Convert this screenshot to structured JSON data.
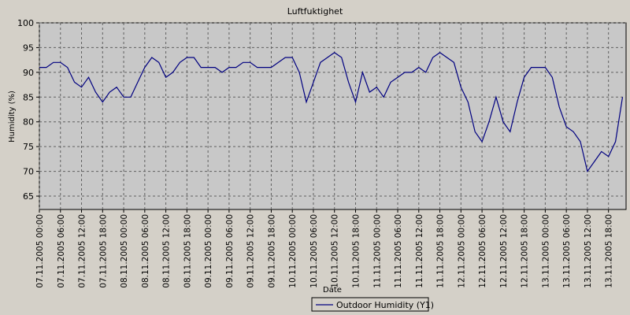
{
  "chart_data": {
    "type": "line",
    "title": "Luftfuktighet",
    "x_label": "Date",
    "y_label": "Humidity (%)",
    "x": [
      "07.11.2005 00:00",
      "07.11.2005 02:00",
      "07.11.2005 04:00",
      "07.11.2005 06:00",
      "07.11.2005 08:00",
      "07.11.2005 10:00",
      "07.11.2005 12:00",
      "07.11.2005 14:00",
      "07.11.2005 16:00",
      "07.11.2005 18:00",
      "07.11.2005 20:00",
      "07.11.2005 22:00",
      "08.11.2005 00:00",
      "08.11.2005 02:00",
      "08.11.2005 04:00",
      "08.11.2005 06:00",
      "08.11.2005 08:00",
      "08.11.2005 10:00",
      "08.11.2005 12:00",
      "08.11.2005 14:00",
      "08.11.2005 16:00",
      "08.11.2005 18:00",
      "08.11.2005 20:00",
      "08.11.2005 22:00",
      "09.11.2005 00:00",
      "09.11.2005 02:00",
      "09.11.2005 04:00",
      "09.11.2005 06:00",
      "09.11.2005 08:00",
      "09.11.2005 10:00",
      "09.11.2005 12:00",
      "09.11.2005 14:00",
      "09.11.2005 16:00",
      "09.11.2005 18:00",
      "09.11.2005 20:00",
      "09.11.2005 22:00",
      "10.11.2005 00:00",
      "10.11.2005 02:00",
      "10.11.2005 04:00",
      "10.11.2005 06:00",
      "10.11.2005 08:00",
      "10.11.2005 10:00",
      "10.11.2005 12:00",
      "10.11.2005 14:00",
      "10.11.2005 16:00",
      "10.11.2005 18:00",
      "10.11.2005 20:00",
      "10.11.2005 22:00",
      "11.11.2005 00:00",
      "11.11.2005 02:00",
      "11.11.2005 04:00",
      "11.11.2005 06:00",
      "11.11.2005 08:00",
      "11.11.2005 10:00",
      "11.11.2005 12:00",
      "11.11.2005 14:00",
      "11.11.2005 16:00",
      "11.11.2005 18:00",
      "11.11.2005 20:00",
      "11.11.2005 22:00",
      "12.11.2005 00:00",
      "12.11.2005 02:00",
      "12.11.2005 04:00",
      "12.11.2005 06:00",
      "12.11.2005 08:00",
      "12.11.2005 10:00",
      "12.11.2005 12:00",
      "12.11.2005 14:00",
      "12.11.2005 16:00",
      "12.11.2005 18:00",
      "12.11.2005 20:00",
      "12.11.2005 22:00",
      "13.11.2005 00:00",
      "13.11.2005 02:00",
      "13.11.2005 04:00",
      "13.11.2005 06:00",
      "13.11.2005 08:00",
      "13.11.2005 10:00",
      "13.11.2005 12:00",
      "13.11.2005 14:00",
      "13.11.2005 16:00",
      "13.11.2005 18:00",
      "13.11.2005 20:00",
      "13.11.2005 22:00"
    ],
    "series": [
      {
        "name": "Outdoor Humidity (Y1)",
        "color": "#000080",
        "values": [
          91,
          91,
          92,
          92,
          91,
          88,
          87,
          89,
          86,
          84,
          86,
          87,
          85,
          85,
          88,
          91,
          93,
          92,
          89,
          90,
          92,
          93,
          93,
          91,
          91,
          91,
          90,
          91,
          91,
          92,
          92,
          91,
          91,
          91,
          92,
          93,
          93,
          90,
          84,
          88,
          92,
          93,
          94,
          93,
          88,
          84,
          90,
          86,
          87,
          85,
          88,
          89,
          90,
          90,
          91,
          90,
          93,
          94,
          93,
          92,
          87,
          84,
          78,
          76,
          80,
          85,
          80,
          78,
          84,
          89,
          91,
          91,
          91,
          89,
          83,
          79,
          78,
          76,
          70,
          72,
          74,
          73,
          76,
          85
        ]
      }
    ],
    "xlim": [
      "07.11.2005 00:00",
      "13.11.2005 23:00"
    ],
    "xticks": [
      "07.11.2005 00:00",
      "07.11.2005 06:00",
      "07.11.2005 12:00",
      "07.11.2005 18:00",
      "08.11.2005 00:00",
      "08.11.2005 06:00",
      "08.11.2005 12:00",
      "08.11.2005 18:00",
      "09.11.2005 00:00",
      "09.11.2005 06:00",
      "09.11.2005 12:00",
      "09.11.2005 18:00",
      "10.11.2005 00:00",
      "10.11.2005 06:00",
      "10.11.2005 12:00",
      "10.11.2005 18:00",
      "11.11.2005 00:00",
      "11.11.2005 06:00",
      "11.11.2005 12:00",
      "11.11.2005 18:00",
      "12.11.2005 00:00",
      "12.11.2005 06:00",
      "12.11.2005 12:00",
      "12.11.2005 18:00",
      "13.11.2005 00:00",
      "13.11.2005 06:00",
      "13.11.2005 12:00",
      "13.11.2005 18:00"
    ],
    "ylim": [
      62.3,
      100
    ],
    "yticks": [
      65,
      70,
      75,
      80,
      85,
      90,
      95,
      100
    ],
    "grid": true,
    "legend": "bottom"
  }
}
